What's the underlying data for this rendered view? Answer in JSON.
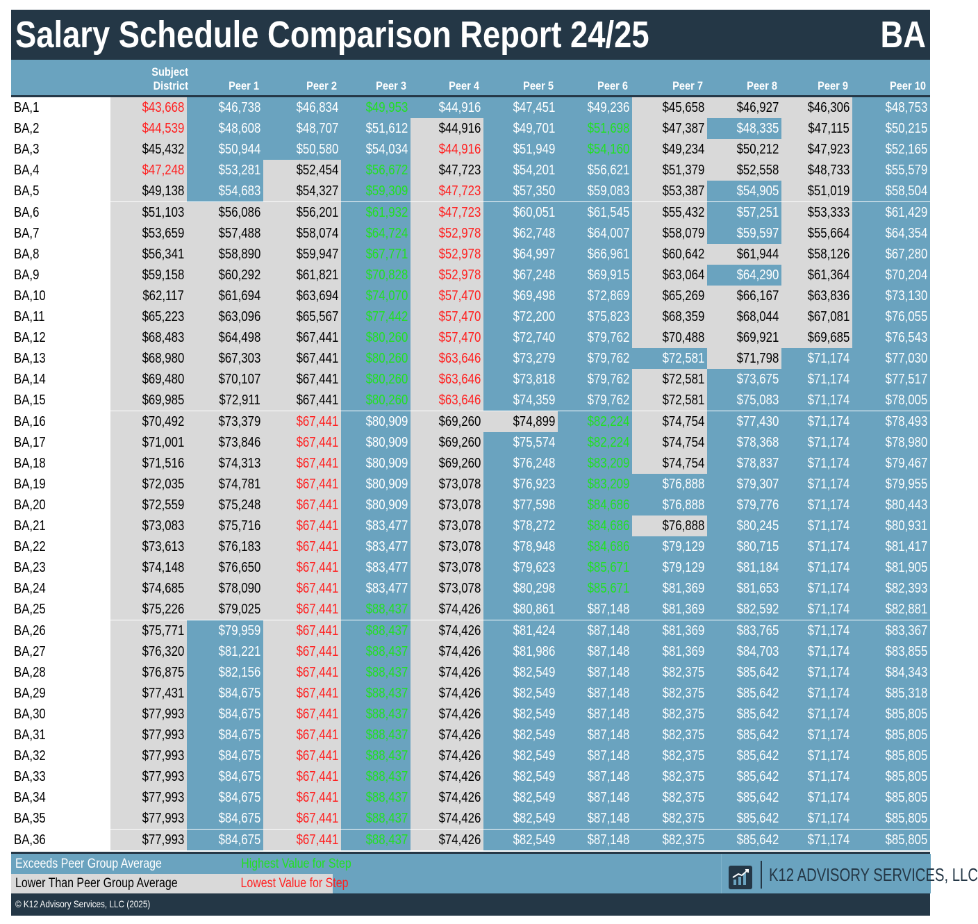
{
  "title": "Salary Schedule Comparison Report 24/25",
  "schedule_code": "BA",
  "columns": [
    "Subject District",
    "Peer 1",
    "Peer 2",
    "Peer 3",
    "Peer 4",
    "Peer 5",
    "Peer 6",
    "Peer 7",
    "Peer 8",
    "Peer 9",
    "Peer 10"
  ],
  "colors": {
    "dark": "#243746",
    "blue": "#6aa3bf",
    "grey": "#d9d9d9",
    "red": "#ff1f1f",
    "green": "#22e022",
    "text": "#000000"
  },
  "rows": [
    {
      "label": "BA,1",
      "values": [
        "$43,668",
        "$46,738",
        "$46,834",
        "$49,953",
        "$44,916",
        "$47,451",
        "$49,236",
        "$45,658",
        "$46,927",
        "$46,306",
        "$48,753"
      ]
    },
    {
      "label": "BA,2",
      "values": [
        "$44,539",
        "$48,608",
        "$48,707",
        "$51,612",
        "$44,916",
        "$49,701",
        "$51,698",
        "$47,387",
        "$48,335",
        "$47,115",
        "$50,215"
      ]
    },
    {
      "label": "BA,3",
      "values": [
        "$45,432",
        "$50,944",
        "$50,580",
        "$54,034",
        "$44,916",
        "$51,949",
        "$54,160",
        "$49,234",
        "$50,212",
        "$47,923",
        "$52,165"
      ]
    },
    {
      "label": "BA,4",
      "values": [
        "$47,248",
        "$53,281",
        "$52,454",
        "$56,672",
        "$47,723",
        "$54,201",
        "$56,621",
        "$51,379",
        "$52,558",
        "$48,733",
        "$55,579"
      ]
    },
    {
      "label": "BA,5",
      "values": [
        "$49,138",
        "$54,683",
        "$54,327",
        "$59,309",
        "$47,723",
        "$57,350",
        "$59,083",
        "$53,387",
        "$54,905",
        "$51,019",
        "$58,504"
      ]
    },
    {
      "label": "BA,6",
      "values": [
        "$51,103",
        "$56,086",
        "$56,201",
        "$61,932",
        "$47,723",
        "$60,051",
        "$61,545",
        "$55,432",
        "$57,251",
        "$53,333",
        "$61,429"
      ]
    },
    {
      "label": "BA,7",
      "values": [
        "$53,659",
        "$57,488",
        "$58,074",
        "$64,724",
        "$52,978",
        "$62,748",
        "$64,007",
        "$58,079",
        "$59,597",
        "$55,664",
        "$64,354"
      ]
    },
    {
      "label": "BA,8",
      "values": [
        "$56,341",
        "$58,890",
        "$59,947",
        "$67,771",
        "$52,978",
        "$64,997",
        "$66,961",
        "$60,642",
        "$61,944",
        "$58,126",
        "$67,280"
      ]
    },
    {
      "label": "BA,9",
      "values": [
        "$59,158",
        "$60,292",
        "$61,821",
        "$70,828",
        "$52,978",
        "$67,248",
        "$69,915",
        "$63,064",
        "$64,290",
        "$61,364",
        "$70,204"
      ]
    },
    {
      "label": "BA,10",
      "values": [
        "$62,117",
        "$61,694",
        "$63,694",
        "$74,070",
        "$57,470",
        "$69,498",
        "$72,869",
        "$65,269",
        "$66,167",
        "$63,836",
        "$73,130"
      ]
    },
    {
      "label": "BA,11",
      "values": [
        "$65,223",
        "$63,096",
        "$65,567",
        "$77,442",
        "$57,470",
        "$72,200",
        "$75,823",
        "$68,359",
        "$68,044",
        "$67,081",
        "$76,055"
      ]
    },
    {
      "label": "BA,12",
      "values": [
        "$68,483",
        "$64,498",
        "$67,441",
        "$80,260",
        "$57,470",
        "$72,740",
        "$79,762",
        "$70,488",
        "$69,921",
        "$69,685",
        "$76,543"
      ]
    },
    {
      "label": "BA,13",
      "values": [
        "$68,980",
        "$67,303",
        "$67,441",
        "$80,260",
        "$63,646",
        "$73,279",
        "$79,762",
        "$72,581",
        "$71,798",
        "$71,174",
        "$77,030"
      ]
    },
    {
      "label": "BA,14",
      "values": [
        "$69,480",
        "$70,107",
        "$67,441",
        "$80,260",
        "$63,646",
        "$73,818",
        "$79,762",
        "$72,581",
        "$73,675",
        "$71,174",
        "$77,517"
      ]
    },
    {
      "label": "BA,15",
      "values": [
        "$69,985",
        "$72,911",
        "$67,441",
        "$80,260",
        "$63,646",
        "$74,359",
        "$79,762",
        "$72,581",
        "$75,083",
        "$71,174",
        "$78,005"
      ]
    },
    {
      "label": "BA,16",
      "values": [
        "$70,492",
        "$73,379",
        "$67,441",
        "$80,909",
        "$69,260",
        "$74,899",
        "$82,224",
        "$74,754",
        "$77,430",
        "$71,174",
        "$78,493"
      ]
    },
    {
      "label": "BA,17",
      "values": [
        "$71,001",
        "$73,846",
        "$67,441",
        "$80,909",
        "$69,260",
        "$75,574",
        "$82,224",
        "$74,754",
        "$78,368",
        "$71,174",
        "$78,980"
      ]
    },
    {
      "label": "BA,18",
      "values": [
        "$71,516",
        "$74,313",
        "$67,441",
        "$80,909",
        "$69,260",
        "$76,248",
        "$83,209",
        "$74,754",
        "$78,837",
        "$71,174",
        "$79,467"
      ]
    },
    {
      "label": "BA,19",
      "values": [
        "$72,035",
        "$74,781",
        "$67,441",
        "$80,909",
        "$73,078",
        "$76,923",
        "$83,209",
        "$76,888",
        "$79,307",
        "$71,174",
        "$79,955"
      ]
    },
    {
      "label": "BA,20",
      "values": [
        "$72,559",
        "$75,248",
        "$67,441",
        "$80,909",
        "$73,078",
        "$77,598",
        "$84,686",
        "$76,888",
        "$79,776",
        "$71,174",
        "$80,443"
      ]
    },
    {
      "label": "BA,21",
      "values": [
        "$73,083",
        "$75,716",
        "$67,441",
        "$83,477",
        "$73,078",
        "$78,272",
        "$84,686",
        "$76,888",
        "$80,245",
        "$71,174",
        "$80,931"
      ]
    },
    {
      "label": "BA,22",
      "values": [
        "$73,613",
        "$76,183",
        "$67,441",
        "$83,477",
        "$73,078",
        "$78,948",
        "$84,686",
        "$79,129",
        "$80,715",
        "$71,174",
        "$81,417"
      ]
    },
    {
      "label": "BA,23",
      "values": [
        "$74,148",
        "$76,650",
        "$67,441",
        "$83,477",
        "$73,078",
        "$79,623",
        "$85,671",
        "$79,129",
        "$81,184",
        "$71,174",
        "$81,905"
      ]
    },
    {
      "label": "BA,24",
      "values": [
        "$74,685",
        "$78,090",
        "$67,441",
        "$83,477",
        "$73,078",
        "$80,298",
        "$85,671",
        "$81,369",
        "$81,653",
        "$71,174",
        "$82,393"
      ]
    },
    {
      "label": "BA,25",
      "values": [
        "$75,226",
        "$79,025",
        "$67,441",
        "$88,437",
        "$74,426",
        "$80,861",
        "$87,148",
        "$81,369",
        "$82,592",
        "$71,174",
        "$82,881"
      ]
    },
    {
      "label": "BA,26",
      "values": [
        "$75,771",
        "$79,959",
        "$67,441",
        "$88,437",
        "$74,426",
        "$81,424",
        "$87,148",
        "$81,369",
        "$83,765",
        "$71,174",
        "$83,367"
      ]
    },
    {
      "label": "BA,27",
      "values": [
        "$76,320",
        "$81,221",
        "$67,441",
        "$88,437",
        "$74,426",
        "$81,986",
        "$87,148",
        "$81,369",
        "$84,703",
        "$71,174",
        "$83,855"
      ]
    },
    {
      "label": "BA,28",
      "values": [
        "$76,875",
        "$82,156",
        "$67,441",
        "$88,437",
        "$74,426",
        "$82,549",
        "$87,148",
        "$82,375",
        "$85,642",
        "$71,174",
        "$84,343"
      ]
    },
    {
      "label": "BA,29",
      "values": [
        "$77,431",
        "$84,675",
        "$67,441",
        "$88,437",
        "$74,426",
        "$82,549",
        "$87,148",
        "$82,375",
        "$85,642",
        "$71,174",
        "$85,318"
      ]
    },
    {
      "label": "BA,30",
      "values": [
        "$77,993",
        "$84,675",
        "$67,441",
        "$88,437",
        "$74,426",
        "$82,549",
        "$87,148",
        "$82,375",
        "$85,642",
        "$71,174",
        "$85,805"
      ]
    },
    {
      "label": "BA,31",
      "values": [
        "$77,993",
        "$84,675",
        "$67,441",
        "$88,437",
        "$74,426",
        "$82,549",
        "$87,148",
        "$82,375",
        "$85,642",
        "$71,174",
        "$85,805"
      ]
    },
    {
      "label": "BA,32",
      "values": [
        "$77,993",
        "$84,675",
        "$67,441",
        "$88,437",
        "$74,426",
        "$82,549",
        "$87,148",
        "$82,375",
        "$85,642",
        "$71,174",
        "$85,805"
      ]
    },
    {
      "label": "BA,33",
      "values": [
        "$77,993",
        "$84,675",
        "$67,441",
        "$88,437",
        "$74,426",
        "$82,549",
        "$87,148",
        "$82,375",
        "$85,642",
        "$71,174",
        "$85,805"
      ]
    },
    {
      "label": "BA,34",
      "values": [
        "$77,993",
        "$84,675",
        "$67,441",
        "$88,437",
        "$74,426",
        "$82,549",
        "$87,148",
        "$82,375",
        "$85,642",
        "$71,174",
        "$85,805"
      ]
    },
    {
      "label": "BA,35",
      "values": [
        "$77,993",
        "$84,675",
        "$67,441",
        "$88,437",
        "$74,426",
        "$82,549",
        "$87,148",
        "$82,375",
        "$85,642",
        "$71,174",
        "$85,805"
      ]
    },
    {
      "label": "BA,36",
      "values": [
        "$77,993",
        "$84,675",
        "$67,441",
        "$88,437",
        "$74,426",
        "$82,549",
        "$87,148",
        "$82,375",
        "$85,642",
        "$71,174",
        "$85,805"
      ]
    }
  ],
  "legend": {
    "exceeds": "Exceeds Peer Group Average",
    "lower": "Lower Than Peer Group Average",
    "highest": "Highest Value for Step",
    "lowest": "Lowest Value for Step"
  },
  "brand": {
    "name": "K12 ADVISORY SERVICES, LLC",
    "icon": "bar-chart-trend-icon"
  },
  "copyright": "© K12 Advisory Services, LLC (2025)"
}
